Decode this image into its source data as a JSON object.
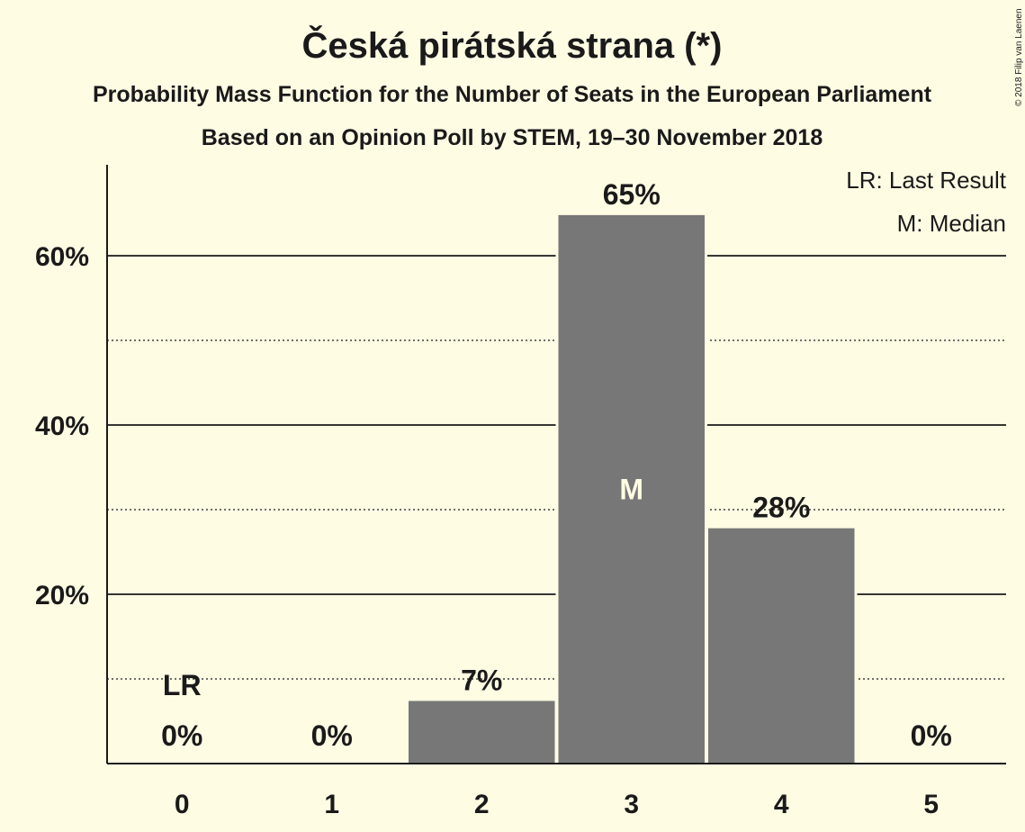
{
  "chart_data": {
    "type": "bar",
    "title": "Česká pirátská strana (*)",
    "subtitle": "Probability Mass Function for the Number of Seats in the European Parliament",
    "subtitle2": "Based on an Opinion Poll by STEM, 19–30 November 2018",
    "copyright": "© 2018 Filip van Laenen",
    "categories": [
      "0",
      "1",
      "2",
      "3",
      "4",
      "5"
    ],
    "values": [
      0,
      0,
      7.4,
      64.8,
      27.8,
      0
    ],
    "value_labels": [
      "0%",
      "0%",
      "7%",
      "65%",
      "28%",
      "0%"
    ],
    "ylim": [
      0,
      70
    ],
    "yticks": [
      20,
      40,
      60
    ],
    "ytick_labels": [
      "20%",
      "40%",
      "60%"
    ],
    "minor_gridlines": [
      10,
      30,
      50
    ],
    "last_result_category": "0",
    "last_result_marker": "LR",
    "median_category": "3",
    "median_marker": "M",
    "legend": [
      "LR: Last Result",
      "M: Median"
    ],
    "legend_position": "top-right",
    "colors": {
      "background": "#FFFCE4",
      "bar": "#777777",
      "text": "#1a1a1a",
      "median_text": "#FFFCE4"
    }
  }
}
